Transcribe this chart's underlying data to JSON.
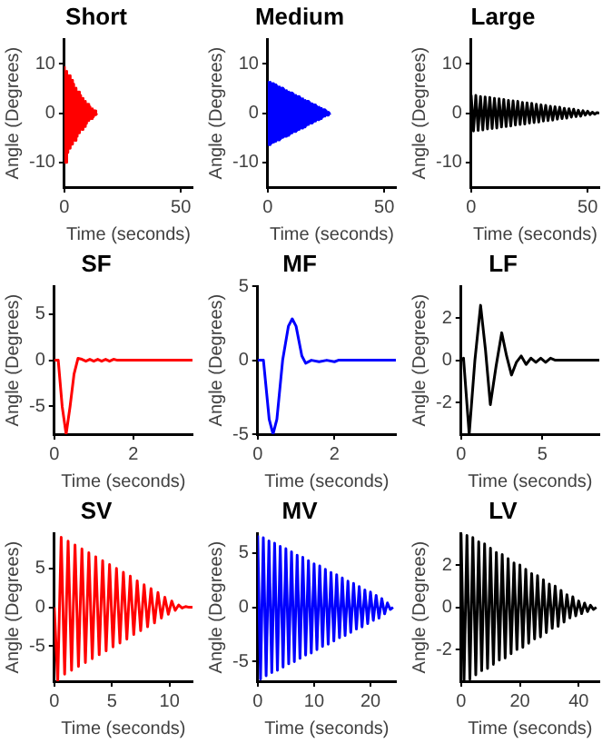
{
  "chart_data": [
    {
      "type": "line",
      "title": "Short",
      "xlabel": "Time (seconds)",
      "ylabel": "Angle (Degrees)",
      "color": "#ff0000",
      "xlim": [
        0,
        55
      ],
      "xticks": [
        0,
        50
      ],
      "ylim": [
        -15,
        15
      ],
      "yticks": [
        -10,
        0,
        10
      ],
      "grid": false,
      "x": [
        0,
        0.5,
        1,
        1.5,
        2,
        2.5,
        3,
        3.5,
        4,
        4.5,
        5,
        5.5,
        6,
        6.5,
        7,
        7.5,
        8,
        8.5,
        9,
        9.5,
        10,
        10.5,
        11,
        11.5,
        12,
        12.5,
        13,
        13.5,
        14
      ],
      "values": [
        9.5,
        -10,
        8.5,
        -8,
        7.6,
        -7.1,
        6.7,
        -6.3,
        5.9,
        -5.5,
        5.1,
        -4.7,
        4.3,
        -4,
        3.6,
        -3.3,
        3,
        -2.7,
        2.4,
        -2.1,
        1.8,
        -1.5,
        1.3,
        -1.1,
        0.9,
        -0.7,
        0.5,
        -0.3,
        0
      ]
    },
    {
      "type": "line",
      "title": "Medium",
      "xlabel": "Time (seconds)",
      "ylabel": "Angle (Degrees)",
      "color": "#0000ff",
      "xlim": [
        0,
        55
      ],
      "xticks": [
        0,
        50
      ],
      "ylim": [
        -15,
        15
      ],
      "yticks": [
        -10,
        0,
        10
      ],
      "grid": false,
      "x": [
        0,
        0.5,
        1,
        1.5,
        2,
        2.5,
        3,
        3.5,
        4,
        4.5,
        5,
        5.5,
        6,
        6.5,
        7,
        7.5,
        8,
        8.5,
        9,
        9.5,
        10,
        10.5,
        11,
        11.5,
        12,
        12.5,
        13,
        13.5,
        14,
        14.5,
        15,
        15.5,
        16,
        16.5,
        17,
        17.5,
        18,
        18.5,
        19,
        19.5,
        20,
        20.5,
        21,
        21.5,
        22,
        22.5,
        23,
        23.5,
        24,
        24.5,
        25,
        25.5,
        26,
        26.5,
        27
      ],
      "values": [
        6.5,
        -6.4,
        6.3,
        -6.1,
        6.0,
        -5.9,
        5.8,
        -5.7,
        5.5,
        -5.4,
        5.3,
        -5.2,
        5.1,
        -4.9,
        4.8,
        -4.7,
        4.6,
        -4.5,
        4.3,
        -4.2,
        4.1,
        -4.0,
        3.9,
        -3.7,
        3.6,
        -3.5,
        3.4,
        -3.3,
        3.1,
        -3.0,
        2.9,
        -2.8,
        2.6,
        -2.5,
        2.4,
        -2.3,
        2.2,
        -2.0,
        1.9,
        -1.8,
        1.7,
        -1.6,
        1.4,
        -1.3,
        1.2,
        -1.1,
        1.0,
        -0.8,
        0.7,
        -0.6,
        0.5,
        -0.4,
        0.2,
        -0.1,
        0
      ]
    },
    {
      "type": "line",
      "title": "Large",
      "xlabel": "Time (seconds)",
      "ylabel": "Angle (Degrees)",
      "color": "#000000",
      "xlim": [
        0,
        55
      ],
      "xticks": [
        0,
        50
      ],
      "ylim": [
        -15,
        15
      ],
      "yticks": [
        -10,
        0,
        10
      ],
      "grid": false,
      "x": [
        0,
        1,
        2,
        3,
        4,
        5,
        6,
        7,
        8,
        9,
        10,
        11,
        12,
        13,
        14,
        15,
        16,
        17,
        18,
        19,
        20,
        21,
        22,
        23,
        24,
        25,
        26,
        27,
        28,
        29,
        30,
        31,
        32,
        33,
        34,
        35,
        36,
        37,
        38,
        39,
        40,
        41,
        42,
        43,
        44,
        45,
        46,
        47,
        48,
        49,
        50,
        51,
        52,
        53,
        54,
        55
      ],
      "values": [
        3.7,
        -3.6,
        3.6,
        -3.5,
        3.4,
        -3.4,
        3.3,
        -3.2,
        3.2,
        -3.1,
        3.0,
        -3.0,
        2.9,
        -2.8,
        2.8,
        -2.7,
        2.6,
        -2.6,
        2.5,
        -2.4,
        2.4,
        -2.3,
        2.2,
        -2.2,
        2.1,
        -2.0,
        2.0,
        -1.9,
        1.8,
        -1.8,
        1.7,
        -1.6,
        1.6,
        -1.5,
        1.4,
        -1.4,
        1.3,
        -1.2,
        1.2,
        -1.1,
        1.0,
        -1.0,
        0.9,
        -0.8,
        0.8,
        -0.7,
        0.6,
        -0.6,
        0.5,
        -0.4,
        0.4,
        -0.3,
        0.2,
        -0.2,
        0.1,
        0
      ]
    },
    {
      "type": "line",
      "title": "SF",
      "xlabel": "Time (seconds)",
      "ylabel": "Angle (Degrees)",
      "color": "#ff0000",
      "xlim": [
        0,
        3.5
      ],
      "xticks": [
        0,
        2
      ],
      "ylim": [
        -8,
        8
      ],
      "yticks": [
        -5,
        0,
        5
      ],
      "grid": false,
      "x": [
        0,
        0.1,
        0.2,
        0.3,
        0.4,
        0.5,
        0.6,
        0.7,
        0.8,
        0.9,
        1.0,
        1.1,
        1.2,
        1.3,
        1.4,
        1.5,
        1.6,
        2.0,
        3.5
      ],
      "values": [
        0,
        0,
        -5,
        -8,
        -5,
        -1.5,
        0.2,
        0.1,
        -0.1,
        0.1,
        -0.1,
        0.1,
        -0.1,
        0.1,
        -0.1,
        0.1,
        0,
        0,
        0
      ]
    },
    {
      "type": "line",
      "title": "MF",
      "xlabel": "Time (seconds)",
      "ylabel": "Angle (Degrees)",
      "color": "#0000ff",
      "xlim": [
        0,
        3.6
      ],
      "xticks": [
        0,
        2
      ],
      "ylim": [
        -5,
        5
      ],
      "yticks": [
        -5,
        0,
        5
      ],
      "grid": false,
      "x": [
        0,
        0.15,
        0.3,
        0.4,
        0.5,
        0.65,
        0.8,
        0.9,
        1.0,
        1.15,
        1.25,
        1.4,
        1.6,
        1.8,
        2.0,
        2.1,
        3.6
      ],
      "values": [
        0,
        0,
        -4,
        -5,
        -4,
        0,
        2.3,
        2.8,
        2.3,
        0.3,
        -0.2,
        0,
        -0.1,
        0,
        -0.1,
        0,
        0
      ]
    },
    {
      "type": "line",
      "title": "LF",
      "xlabel": "Time (seconds)",
      "ylabel": "Angle (Degrees)",
      "color": "#000000",
      "xlim": [
        0,
        8.5
      ],
      "xticks": [
        0,
        5
      ],
      "ylim": [
        -3.5,
        3.5
      ],
      "yticks": [
        -2,
        0,
        2
      ],
      "grid": false,
      "x": [
        0,
        0.15,
        0.5,
        0.85,
        1.2,
        1.5,
        1.8,
        2.15,
        2.5,
        2.8,
        3.1,
        3.4,
        3.7,
        4.0,
        4.3,
        4.6,
        4.9,
        5.2,
        5.5,
        5.8,
        8.5
      ],
      "values": [
        0,
        0.1,
        -3.5,
        0,
        2.6,
        0.5,
        -2.1,
        -0.3,
        1.3,
        0.2,
        -0.7,
        -0.1,
        0.2,
        -0.2,
        0.1,
        -0.1,
        0.1,
        -0.1,
        0.1,
        0,
        0
      ]
    },
    {
      "type": "line",
      "title": "SV",
      "xlabel": "Time (seconds)",
      "ylabel": "Angle (Degrees)",
      "color": "#ff0000",
      "xlim": [
        0,
        12
      ],
      "xticks": [
        0,
        5,
        10
      ],
      "ylim": [
        -9.5,
        9.5
      ],
      "yticks": [
        -5,
        0,
        5
      ],
      "grid": false,
      "x": [
        0,
        0.3,
        0.6,
        0.9,
        1.2,
        1.5,
        1.8,
        2.1,
        2.4,
        2.7,
        3.0,
        3.3,
        3.6,
        3.9,
        4.2,
        4.5,
        4.8,
        5.1,
        5.4,
        5.7,
        6.0,
        6.3,
        6.6,
        6.9,
        7.2,
        7.5,
        7.8,
        8.1,
        8.4,
        8.7,
        9.0,
        9.3,
        9.6,
        9.9,
        10.2,
        10.5,
        10.8,
        11.1,
        11.4,
        11.7,
        12.0
      ],
      "values": [
        0,
        -9.5,
        9.0,
        -8.6,
        8.5,
        -8.1,
        8.0,
        -7.6,
        7.5,
        -7.1,
        7.0,
        -6.6,
        6.5,
        -6.1,
        6.0,
        -5.6,
        5.5,
        -5.1,
        5.0,
        -4.6,
        4.5,
        -4.1,
        4.0,
        -3.5,
        3.4,
        -3.0,
        2.9,
        -2.5,
        2.4,
        -2.0,
        1.9,
        -1.4,
        1.3,
        -0.9,
        0.8,
        -0.4,
        0.3,
        -0.1,
        0.1,
        0,
        0
      ]
    },
    {
      "type": "line",
      "title": "MV",
      "xlabel": "Time (seconds)",
      "ylabel": "Angle (Degrees)",
      "color": "#0000ff",
      "xlim": [
        0,
        24.5
      ],
      "xticks": [
        0,
        10,
        20
      ],
      "ylim": [
        -6.8,
        6.8
      ],
      "yticks": [
        -5,
        0,
        5
      ],
      "grid": false,
      "x": [
        0,
        0.5,
        1,
        1.5,
        2,
        2.5,
        3,
        3.5,
        4,
        4.5,
        5,
        5.5,
        6,
        6.5,
        7,
        7.5,
        8,
        8.5,
        9,
        9.5,
        10,
        10.5,
        11,
        11.5,
        12,
        12.5,
        13,
        13.5,
        14,
        14.5,
        15,
        15.5,
        16,
        16.5,
        17,
        17.5,
        18,
        18.5,
        19,
        19.5,
        20,
        20.5,
        21,
        21.5,
        22,
        22.5,
        23,
        23.5,
        24
      ],
      "values": [
        6.6,
        -6.6,
        6.4,
        -6.3,
        6.1,
        -6.0,
        5.9,
        -5.8,
        5.6,
        -5.5,
        5.4,
        -5.2,
        5.1,
        -5.0,
        4.8,
        -4.7,
        4.6,
        -4.4,
        4.3,
        -4.2,
        4.0,
        -3.9,
        3.8,
        -3.6,
        3.5,
        -3.4,
        3.2,
        -3.1,
        3.0,
        -2.8,
        2.7,
        -2.6,
        2.4,
        -2.3,
        2.2,
        -2.0,
        1.9,
        -1.8,
        1.6,
        -1.5,
        1.4,
        -1.2,
        1.1,
        -1.0,
        0.8,
        -0.6,
        0.4,
        -0.2,
        0
      ]
    },
    {
      "type": "line",
      "title": "LV",
      "xlabel": "Time (seconds)",
      "ylabel": "Angle (Degrees)",
      "color": "#000000",
      "xlim": [
        0,
        47
      ],
      "xticks": [
        0,
        20,
        40
      ],
      "ylim": [
        -3.5,
        3.5
      ],
      "yticks": [
        -2,
        0,
        2
      ],
      "grid": false,
      "x": [
        0,
        1,
        2,
        3,
        4,
        5,
        6,
        7,
        8,
        9,
        10,
        11,
        12,
        13,
        14,
        15,
        16,
        17,
        18,
        19,
        20,
        21,
        22,
        23,
        24,
        25,
        26,
        27,
        28,
        29,
        30,
        31,
        32,
        33,
        34,
        35,
        36,
        37,
        38,
        39,
        40,
        41,
        42,
        43,
        44,
        45,
        46
      ],
      "values": [
        3.5,
        -3.5,
        3.4,
        -3.4,
        3.3,
        -3.2,
        3.1,
        -3.0,
        3.0,
        -2.9,
        2.8,
        -2.7,
        2.6,
        -2.5,
        2.5,
        -2.4,
        2.3,
        -2.2,
        2.1,
        -2.0,
        2.0,
        -1.9,
        1.8,
        -1.7,
        1.6,
        -1.5,
        1.5,
        -1.4,
        1.3,
        -1.2,
        1.1,
        -1.0,
        1.0,
        -0.9,
        0.8,
        -0.7,
        0.6,
        -0.5,
        0.5,
        -0.4,
        0.3,
        -0.3,
        0.2,
        -0.2,
        0.1,
        -0.1,
        0
      ]
    }
  ]
}
